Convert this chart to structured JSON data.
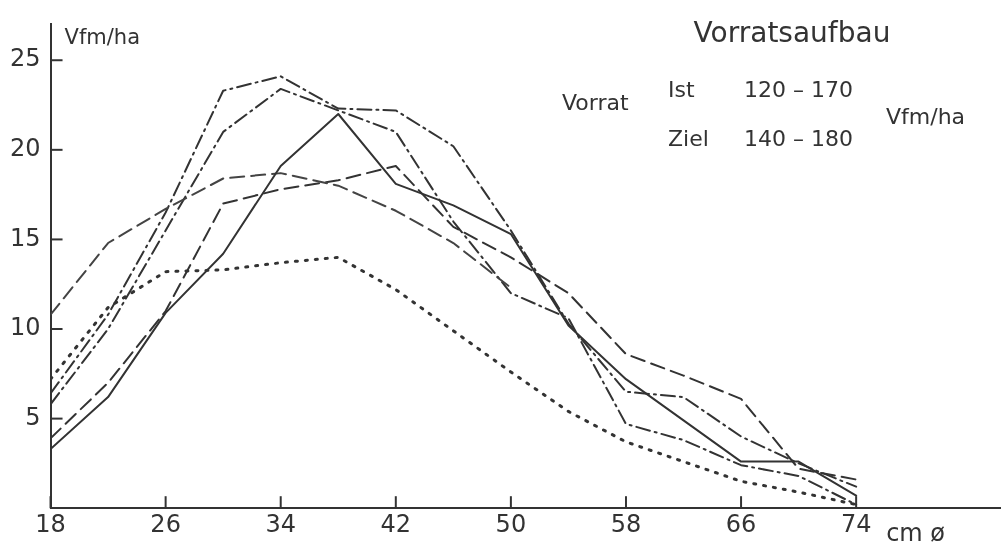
{
  "chart_data": {
    "type": "line",
    "title": "Vorratsaufbau",
    "xlabel": "cm ø",
    "ylabel": "Vfm/ha",
    "annotations": [
      "Vorrat",
      "Ist",
      "120 – 170",
      "Ziel",
      "140 – 180",
      "Vfm/ha"
    ],
    "x": [
      18,
      22,
      26,
      30,
      34,
      38,
      42,
      46,
      50,
      54,
      58,
      62,
      66,
      70,
      74
    ],
    "xlim": [
      18,
      84
    ],
    "xticks": [
      18,
      26,
      34,
      42,
      50,
      58,
      66,
      74
    ],
    "ylim": [
      0,
      27
    ],
    "yticks": [
      5,
      10,
      15,
      20,
      25
    ],
    "grid": false,
    "legend": false,
    "marker": "none",
    "series": [
      {
        "color": "#333333",
        "line_style": "solid",
        "values": [
          3.3,
          6.2,
          10.9,
          14.2,
          19.1,
          22,
          18.1,
          16.9,
          15.3,
          10.2,
          7.2,
          4.9,
          2.6,
          2.6,
          0.7
        ]
      },
      {
        "color": "#444444",
        "line_style": "dashed",
        "x": [
          18,
          22,
          26,
          30,
          34,
          38,
          42,
          46,
          50
        ],
        "values": [
          10.8,
          14.8,
          16.7,
          18.4,
          18.7,
          18,
          16.6,
          14.8,
          12.3
        ]
      },
      {
        "color": "#333333",
        "line_style": "dotted",
        "values": [
          7.2,
          11.2,
          13.2,
          13.3,
          13.7,
          14,
          12.2,
          9.9,
          7.6,
          5.4,
          3.7,
          2.6,
          1.5,
          0.9,
          0.2
        ]
      },
      {
        "color": "#333333",
        "line_style": "dashed",
        "values": [
          3.9,
          7,
          11,
          17,
          17.8,
          18.3,
          19.1,
          15.7,
          14,
          12,
          8.6,
          7.4,
          6.1,
          2.2,
          1.6
        ]
      },
      {
        "color": "#333333",
        "line_style": "dashdot",
        "values": [
          5.8,
          10,
          15.5,
          21,
          23.4,
          22.2,
          21,
          16,
          12,
          10.6,
          4.7,
          3.8,
          2.4,
          1.8,
          0.2
        ]
      },
      {
        "color": "#333333",
        "line_style": "dashdot",
        "values": [
          6.4,
          10.8,
          16.5,
          23.3,
          24.1,
          22.3,
          22.2,
          20.2,
          15.5,
          10.3,
          6.5,
          6.2,
          4,
          2.5,
          1.2
        ]
      }
    ]
  }
}
